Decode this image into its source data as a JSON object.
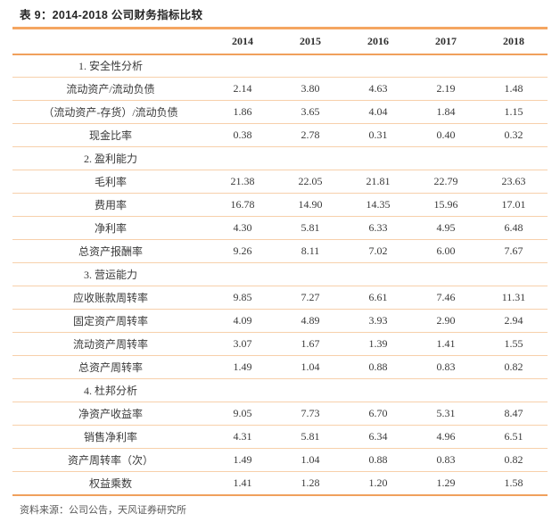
{
  "page": {
    "title": "表 9：2014-2018 公司财务指标比较",
    "source_note": "资料来源：公司公告，天风证券研究所"
  },
  "colors": {
    "accent_orange": "#F5A661",
    "rule_orange": "#F0A05C",
    "row_divider": "#F7D0AB",
    "title_text": "#262626",
    "body_text": "#3A3A3A",
    "source_text": "#595959"
  },
  "chart_data": {
    "type": "table",
    "title": "表 9：2014-2018 公司财务指标比较",
    "columns": [
      "",
      "2014",
      "2015",
      "2016",
      "2017",
      "2018"
    ],
    "rows": [
      {
        "type": "section",
        "label": "1. 安全性分析",
        "values": [
          "",
          "",
          "",
          "",
          ""
        ]
      },
      {
        "type": "data",
        "label": "流动资产/流动负债",
        "values": [
          "2.14",
          "3.80",
          "4.63",
          "2.19",
          "1.48"
        ]
      },
      {
        "type": "data",
        "label": "（流动资产-存货）/流动负债",
        "values": [
          "1.86",
          "3.65",
          "4.04",
          "1.84",
          "1.15"
        ]
      },
      {
        "type": "data",
        "label": "现金比率",
        "values": [
          "0.38",
          "2.78",
          "0.31",
          "0.40",
          "0.32"
        ]
      },
      {
        "type": "section",
        "label": "2. 盈利能力",
        "values": [
          "",
          "",
          "",
          "",
          ""
        ]
      },
      {
        "type": "data",
        "label": "毛利率",
        "values": [
          "21.38",
          "22.05",
          "21.81",
          "22.79",
          "23.63"
        ]
      },
      {
        "type": "data",
        "label": "费用率",
        "values": [
          "16.78",
          "14.90",
          "14.35",
          "15.96",
          "17.01"
        ]
      },
      {
        "type": "data",
        "label": "净利率",
        "values": [
          "4.30",
          "5.81",
          "6.33",
          "4.95",
          "6.48"
        ]
      },
      {
        "type": "data",
        "label": "总资产报酬率",
        "values": [
          "9.26",
          "8.11",
          "7.02",
          "6.00",
          "7.67"
        ]
      },
      {
        "type": "section",
        "label": "3. 营运能力",
        "values": [
          "",
          "",
          "",
          "",
          ""
        ]
      },
      {
        "type": "data",
        "label": "应收账款周转率",
        "values": [
          "9.85",
          "7.27",
          "6.61",
          "7.46",
          "11.31"
        ]
      },
      {
        "type": "data",
        "label": "固定资产周转率",
        "values": [
          "4.09",
          "4.89",
          "3.93",
          "2.90",
          "2.94"
        ]
      },
      {
        "type": "data",
        "label": "流动资产周转率",
        "values": [
          "3.07",
          "1.67",
          "1.39",
          "1.41",
          "1.55"
        ]
      },
      {
        "type": "data",
        "label": "总资产周转率",
        "values": [
          "1.49",
          "1.04",
          "0.88",
          "0.83",
          "0.82"
        ]
      },
      {
        "type": "section",
        "label": "4. 杜邦分析",
        "values": [
          "",
          "",
          "",
          "",
          ""
        ]
      },
      {
        "type": "data",
        "label": "净资产收益率",
        "values": [
          "9.05",
          "7.73",
          "6.70",
          "5.31",
          "8.47"
        ]
      },
      {
        "type": "data",
        "label": "销售净利率",
        "values": [
          "4.31",
          "5.81",
          "6.34",
          "4.96",
          "6.51"
        ]
      },
      {
        "type": "data",
        "label": "资产周转率（次）",
        "values": [
          "1.49",
          "1.04",
          "0.88",
          "0.83",
          "0.82"
        ]
      },
      {
        "type": "data",
        "label": "权益乘数",
        "values": [
          "1.41",
          "1.28",
          "1.20",
          "1.29",
          "1.58"
        ]
      }
    ]
  }
}
